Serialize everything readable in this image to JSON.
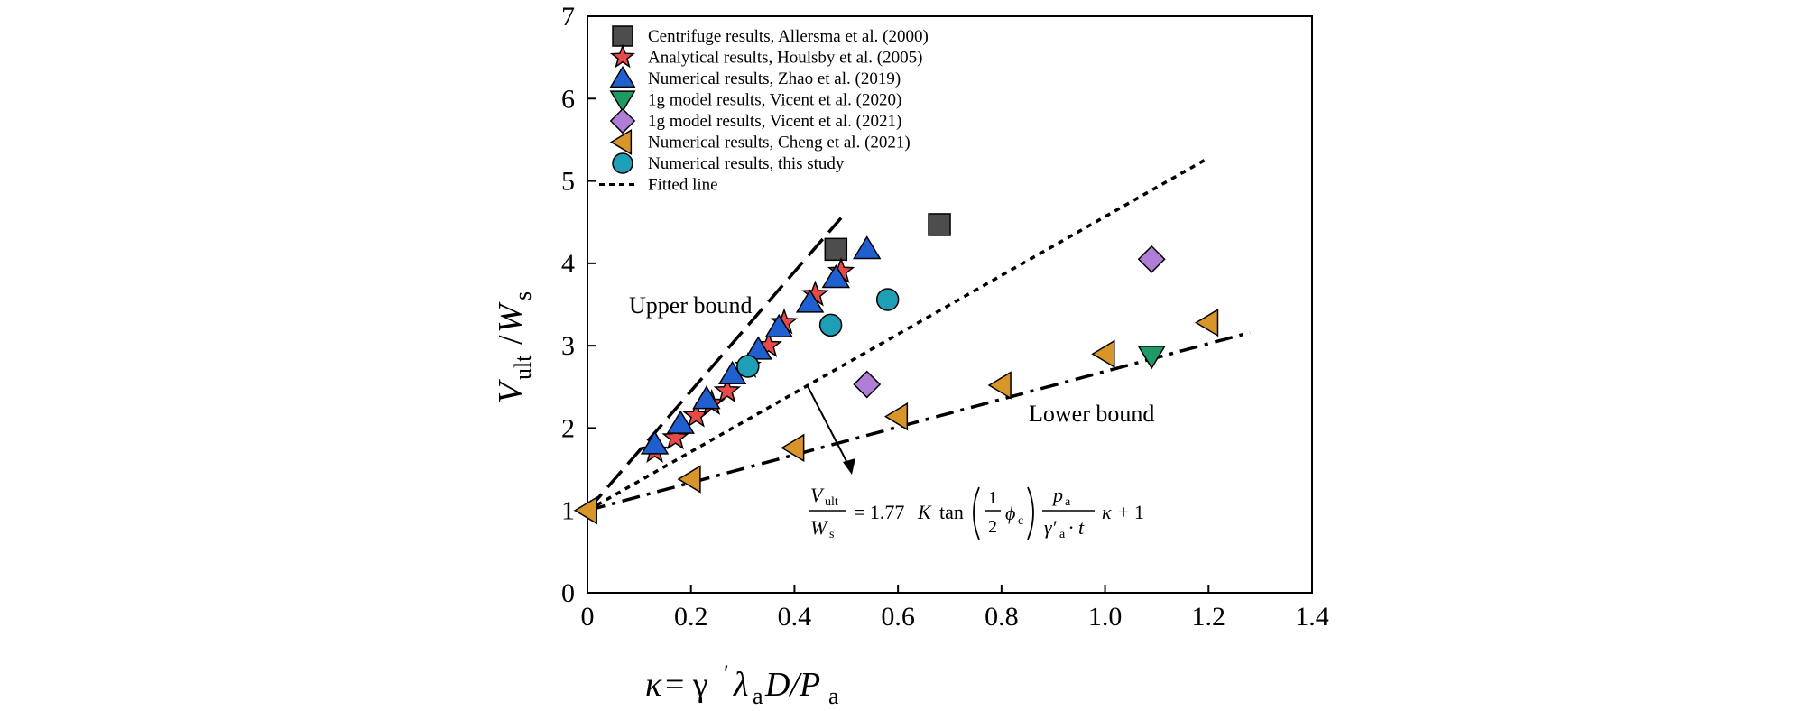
{
  "chart_data": {
    "type": "scatter",
    "xlabel": "κ = γ′λaD/Pa",
    "xlabel_parts": {
      "kappa": "κ",
      "equals": " = γ",
      "prime": "′",
      "lambda": "λ",
      "a1": "a",
      "D": "D/P",
      "a2": "a"
    },
    "ylabel": "Vult/Ws",
    "ylabel_parts": {
      "V": "V",
      "ult": "ult",
      "slash": "/",
      "W": "W",
      "s": "s"
    },
    "xlim": [
      0,
      1.4
    ],
    "ylim": [
      0,
      7
    ],
    "xticks": [
      0,
      0.2,
      0.4,
      0.6,
      0.8,
      1.0,
      1.2,
      1.4
    ],
    "xtick_labels": [
      "0",
      "0.2",
      "0.4",
      "0.6",
      "0.8",
      "1.0",
      "1.2",
      "1.4"
    ],
    "yticks": [
      0,
      1,
      2,
      3,
      4,
      5,
      6,
      7
    ],
    "ytick_labels": [
      "0",
      "1",
      "2",
      "3",
      "4",
      "5",
      "6",
      "7"
    ],
    "grid": false,
    "legend_position": "top-left",
    "series": [
      {
        "name": "Centrifuge results, Allersma et al. (2000)",
        "marker": "square",
        "color": "#4d4d4d",
        "x": [
          0.48,
          0.68
        ],
        "y": [
          4.17,
          4.47
        ]
      },
      {
        "name": "Analytical results, Houlsby et al. (2005)",
        "marker": "star",
        "color": "#e84a4a",
        "x": [
          0.13,
          0.17,
          0.21,
          0.24,
          0.27,
          0.31,
          0.35,
          0.38,
          0.44,
          0.49
        ],
        "y": [
          1.72,
          1.88,
          2.15,
          2.3,
          2.45,
          2.75,
          3.0,
          3.28,
          3.62,
          3.9
        ]
      },
      {
        "name": "Numerical results, Zhao et al. (2019)",
        "marker": "triangle-up",
        "color": "#1f5fd0",
        "x": [
          0.13,
          0.18,
          0.23,
          0.28,
          0.33,
          0.37,
          0.43,
          0.48,
          0.54
        ],
        "y": [
          1.8,
          2.05,
          2.35,
          2.65,
          2.95,
          3.22,
          3.52,
          3.82,
          4.17
        ]
      },
      {
        "name": "1g model results, Vicent et al. (2020)",
        "marker": "triangle-down",
        "color": "#1f9a64",
        "x": [
          1.09
        ],
        "y": [
          2.88
        ]
      },
      {
        "name": "1g model results, Vicent et al. (2021)",
        "marker": "diamond",
        "color": "#b07ed6",
        "x": [
          0.54,
          1.09
        ],
        "y": [
          2.53,
          4.05
        ]
      },
      {
        "name": "Numerical results, Cheng et al. (2021)",
        "marker": "triangle-left",
        "color": "#d8952a",
        "x": [
          0.0,
          0.2,
          0.4,
          0.6,
          0.8,
          1.0,
          1.2
        ],
        "y": [
          1.0,
          1.38,
          1.76,
          2.14,
          2.52,
          2.9,
          3.28
        ]
      },
      {
        "name": "Numerical results, this study",
        "marker": "circle",
        "color": "#1e9fb5",
        "x": [
          0.31,
          0.47,
          0.58
        ],
        "y": [
          2.75,
          3.25,
          3.56
        ]
      }
    ],
    "lines": [
      {
        "name": "Fitted line",
        "style": "dotted",
        "x": [
          0,
          1.2
        ],
        "y": [
          1.0,
          5.28
        ]
      },
      {
        "label": "Upper bound",
        "style": "dashed",
        "x": [
          0,
          0.49
        ],
        "y": [
          1.0,
          4.55
        ]
      },
      {
        "label": "Lower bound",
        "style": "dashdot",
        "x": [
          0,
          1.28
        ],
        "y": [
          1.0,
          3.16
        ]
      }
    ],
    "annotations": {
      "upper": "Upper bound",
      "lower": "Lower bound",
      "equation": {
        "lhs_num_V": "V",
        "lhs_num_sub": "ult",
        "lhs_den_W": "W",
        "lhs_den_sub": "s",
        "equals": "= 1.77",
        "K": "K",
        "tan": "tan",
        "frac_num": "1",
        "frac_den": "2",
        "phi": "ϕ",
        "phi_sub": "c",
        "p": "p",
        "p_sub": "a",
        "gamma": "γ′",
        "gamma_sub": "a",
        "dot_t": "· t",
        "kappa": "κ",
        "plus_one": "+ 1"
      }
    }
  }
}
